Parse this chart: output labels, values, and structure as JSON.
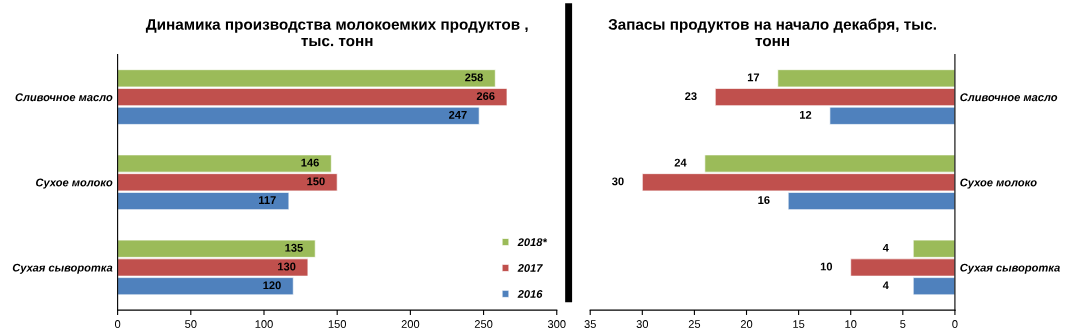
{
  "chart_data": [
    {
      "type": "bar",
      "orientation": "horizontal",
      "title": "Динамика производства молокоемких продуктов ,\nтыс. тонн",
      "categories": [
        "Сливочное масло",
        "Сухое молоко",
        "Сухая сыворотка"
      ],
      "series": [
        {
          "name": "2018*",
          "color": "#9bbb59",
          "values": [
            258,
            146,
            135
          ]
        },
        {
          "name": "2017",
          "color": "#c0504d",
          "values": [
            266,
            150,
            130
          ]
        },
        {
          "name": "2016",
          "color": "#4f81bd",
          "values": [
            247,
            117,
            120
          ]
        }
      ],
      "xlim": [
        0,
        300
      ],
      "xticks": [
        0,
        50,
        100,
        150,
        200,
        250,
        300
      ],
      "data_labels": true,
      "legend": "lower right",
      "grid": false
    },
    {
      "type": "bar",
      "orientation": "horizontal",
      "title": "Запасы продуктов на начало декабря, тыс.\nтонн",
      "categories": [
        "Сливочное масло",
        "Сухое молоко",
        "Сухая сыворотка"
      ],
      "series": [
        {
          "color": "#9bbb59",
          "values": [
            17,
            24,
            4
          ]
        },
        {
          "color": "#c0504d",
          "values": [
            23,
            30,
            10
          ]
        },
        {
          "color": "#4f81bd",
          "values": [
            12,
            16,
            4
          ]
        }
      ],
      "xlim": [
        35,
        0
      ],
      "xticks": [
        35,
        30,
        25,
        20,
        15,
        10,
        5,
        0
      ],
      "data_labels": true,
      "legend": false,
      "grid": false
    }
  ]
}
